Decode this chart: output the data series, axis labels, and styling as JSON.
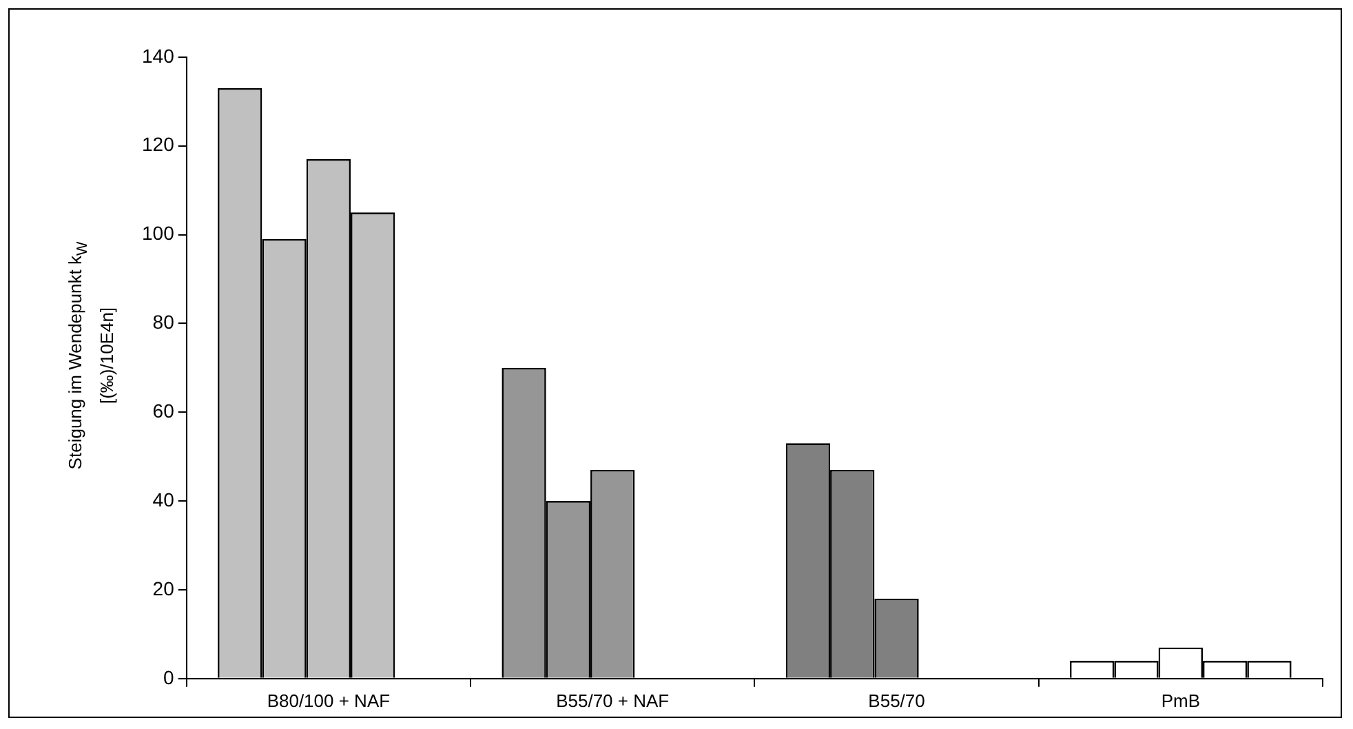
{
  "chart_data": {
    "type": "bar",
    "ylabel": "Steigung im Wendepunkt k$_{W}$\n[(‰)/10E4n]",
    "categories": [
      "B80/100 + NAF",
      "B55/70 + NAF",
      "B55/70",
      "PmB"
    ],
    "series": [
      {
        "colors": [
          "#c0c0c0",
          "#969696",
          "#808080",
          "#ffffff"
        ],
        "values": [
          133,
          70,
          53,
          4
        ]
      },
      {
        "colors": [
          "#c0c0c0",
          "#969696",
          "#808080",
          "#ffffff"
        ],
        "values": [
          99,
          40,
          47,
          4
        ]
      },
      {
        "colors": [
          "#c0c0c0",
          "#969696",
          "#808080",
          "#ffffff"
        ],
        "values": [
          117,
          47,
          18,
          7
        ]
      },
      {
        "colors": [
          "#c0c0c0",
          "#969696",
          "#808080",
          "#ffffff"
        ],
        "values": [
          105,
          null,
          null,
          4
        ]
      },
      {
        "colors": [
          "#c0c0c0",
          "#969696",
          "#808080",
          "#ffffff"
        ],
        "values": [
          null,
          null,
          null,
          4
        ]
      }
    ],
    "ylim": [
      0,
      140
    ],
    "yticks": [
      0,
      20,
      40,
      60,
      80,
      100,
      120,
      140
    ],
    "grid": false,
    "legend": false
  }
}
